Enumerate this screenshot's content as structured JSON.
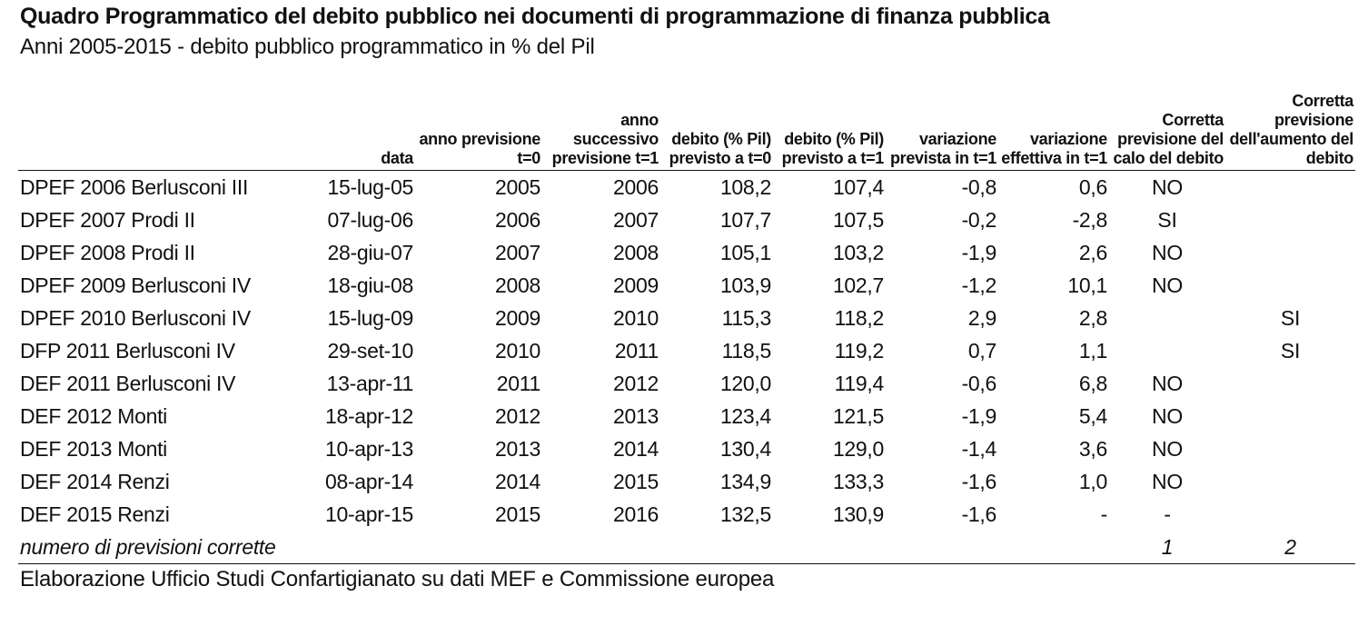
{
  "title": "Quadro Programmatico del debito pubblico nei documenti di programmazione di finanza pubblica",
  "subtitle": "Anni 2005-2015 - debito pubblico programmatico in % del Pil",
  "headers": [
    "",
    "data",
    "anno previsione t=0",
    "anno successivo previsione t=1",
    "debito (% Pil) previsto a t=0",
    "debito (% Pil) previsto a t=1",
    "variazione prevista in t=1",
    "variazione effettiva in t=1",
    "Corretta previsione del calo del debito",
    "Corretta previsione dell'aumento del debito"
  ],
  "rows": [
    [
      "DPEF 2006 Berlusconi III",
      "15-lug-05",
      "2005",
      "2006",
      "108,2",
      "107,4",
      "-0,8",
      "0,6",
      "NO",
      ""
    ],
    [
      "DPEF 2007 Prodi II",
      "07-lug-06",
      "2006",
      "2007",
      "107,7",
      "107,5",
      "-0,2",
      "-2,8",
      "SI",
      ""
    ],
    [
      "DPEF 2008 Prodi II",
      "28-giu-07",
      "2007",
      "2008",
      "105,1",
      "103,2",
      "-1,9",
      "2,6",
      "NO",
      ""
    ],
    [
      "DPEF 2009 Berlusconi IV",
      "18-giu-08",
      "2008",
      "2009",
      "103,9",
      "102,7",
      "-1,2",
      "10,1",
      "NO",
      ""
    ],
    [
      "DPEF 2010 Berlusconi IV",
      "15-lug-09",
      "2009",
      "2010",
      "115,3",
      "118,2",
      "2,9",
      "2,8",
      "",
      "SI"
    ],
    [
      "DFP 2011 Berlusconi IV",
      "29-set-10",
      "2010",
      "2011",
      "118,5",
      "119,2",
      "0,7",
      "1,1",
      "",
      "SI"
    ],
    [
      "DEF 2011 Berlusconi IV",
      "13-apr-11",
      "2011",
      "2012",
      "120,0",
      "119,4",
      "-0,6",
      "6,8",
      "NO",
      ""
    ],
    [
      "DEF 2012 Monti",
      "18-apr-12",
      "2012",
      "2013",
      "123,4",
      "121,5",
      "-1,9",
      "5,4",
      "NO",
      ""
    ],
    [
      "DEF 2013 Monti",
      "10-apr-13",
      "2013",
      "2014",
      "130,4",
      "129,0",
      "-1,4",
      "3,6",
      "NO",
      ""
    ],
    [
      "DEF 2014 Renzi",
      "08-apr-14",
      "2014",
      "2015",
      "134,9",
      "133,3",
      "-1,6",
      "1,0",
      "NO",
      ""
    ],
    [
      "DEF 2015 Renzi",
      "10-apr-15",
      "2015",
      "2016",
      "132,5",
      "130,9",
      "-1,6",
      "-",
      "-",
      ""
    ]
  ],
  "totals": {
    "label": "numero di previsioni corrette",
    "calo": "1",
    "aumento": "2"
  },
  "source": "Elaborazione Ufficio Studi Confartigianato su dati MEF e Commissione europea"
}
